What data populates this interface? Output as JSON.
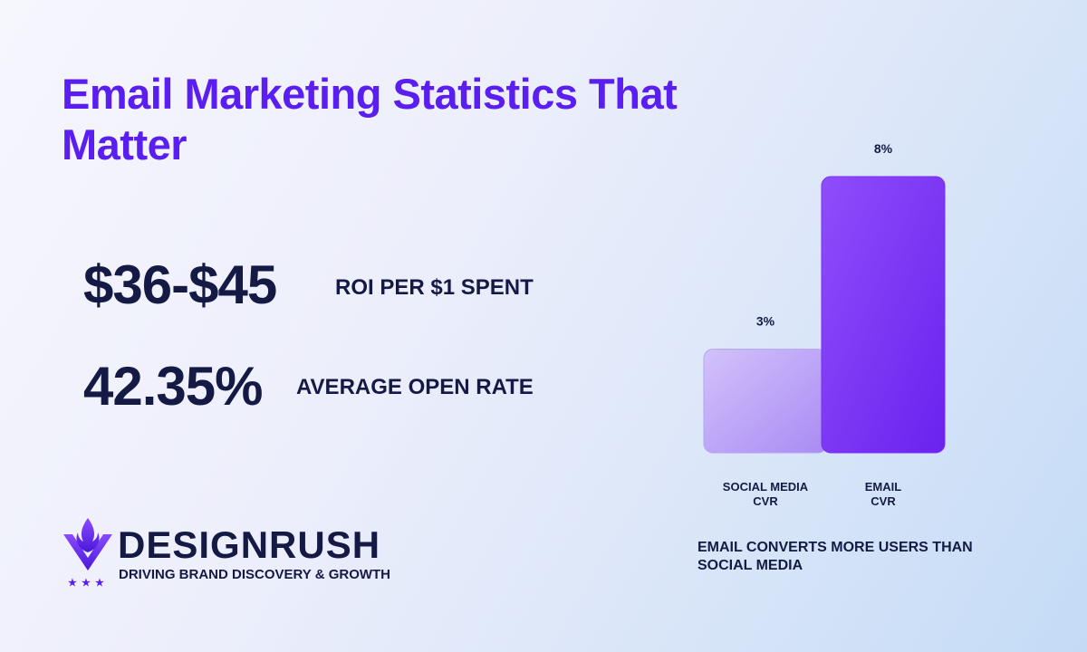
{
  "header": {
    "title": "Email Marketing Statistics That Matter"
  },
  "stats": [
    {
      "value": "$36-$45",
      "label": "ROI PER $1 SPENT"
    },
    {
      "value": "42.35%",
      "label": "AVERAGE OPEN RATE"
    }
  ],
  "chart_data": {
    "type": "bar",
    "categories": [
      "SOCIAL MEDIA CVR",
      "EMAIL CVR"
    ],
    "values": [
      3,
      8
    ],
    "value_labels": [
      "3%",
      "8%"
    ],
    "colors": [
      "#b7a0f6",
      "#7b2ff7"
    ]
  },
  "caption": "EMAIL CONVERTS MORE USERS THAN SOCIAL MEDIA",
  "brand": {
    "name": "DESIGNRUSH",
    "tagline": "DRIVING BRAND DISCOVERY & GROWTH"
  }
}
